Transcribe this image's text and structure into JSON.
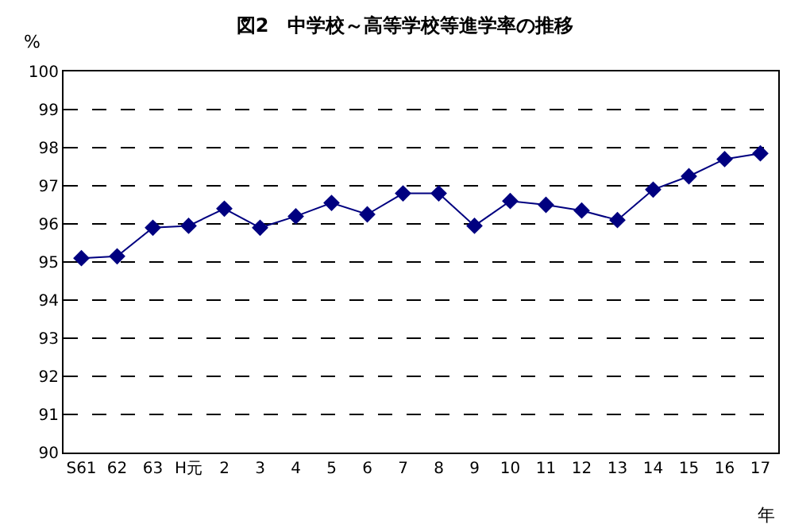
{
  "chart_data": {
    "type": "line",
    "title": "図2　中学校～高等学校等進学率の推移",
    "ylabel": "%",
    "xlabel": "年",
    "categories": [
      "S61",
      "62",
      "63",
      "H元",
      "2",
      "3",
      "4",
      "5",
      "6",
      "7",
      "8",
      "9",
      "10",
      "11",
      "12",
      "13",
      "14",
      "15",
      "16",
      "17"
    ],
    "series": [
      {
        "color": "#000080",
        "values": [
          95.1,
          95.15,
          95.9,
          95.95,
          96.4,
          95.9,
          96.2,
          96.55,
          96.25,
          96.8,
          96.8,
          95.95,
          96.6,
          96.5,
          96.35,
          96.1,
          96.9,
          97.25,
          97.7,
          97.85
        ]
      }
    ],
    "ylim": [
      90,
      100
    ],
    "yticks": [
      90,
      91,
      92,
      93,
      94,
      95,
      96,
      97,
      98,
      99,
      100
    ],
    "grid": "y",
    "marker": "diamond",
    "line_style": "solid",
    "legend": false
  }
}
